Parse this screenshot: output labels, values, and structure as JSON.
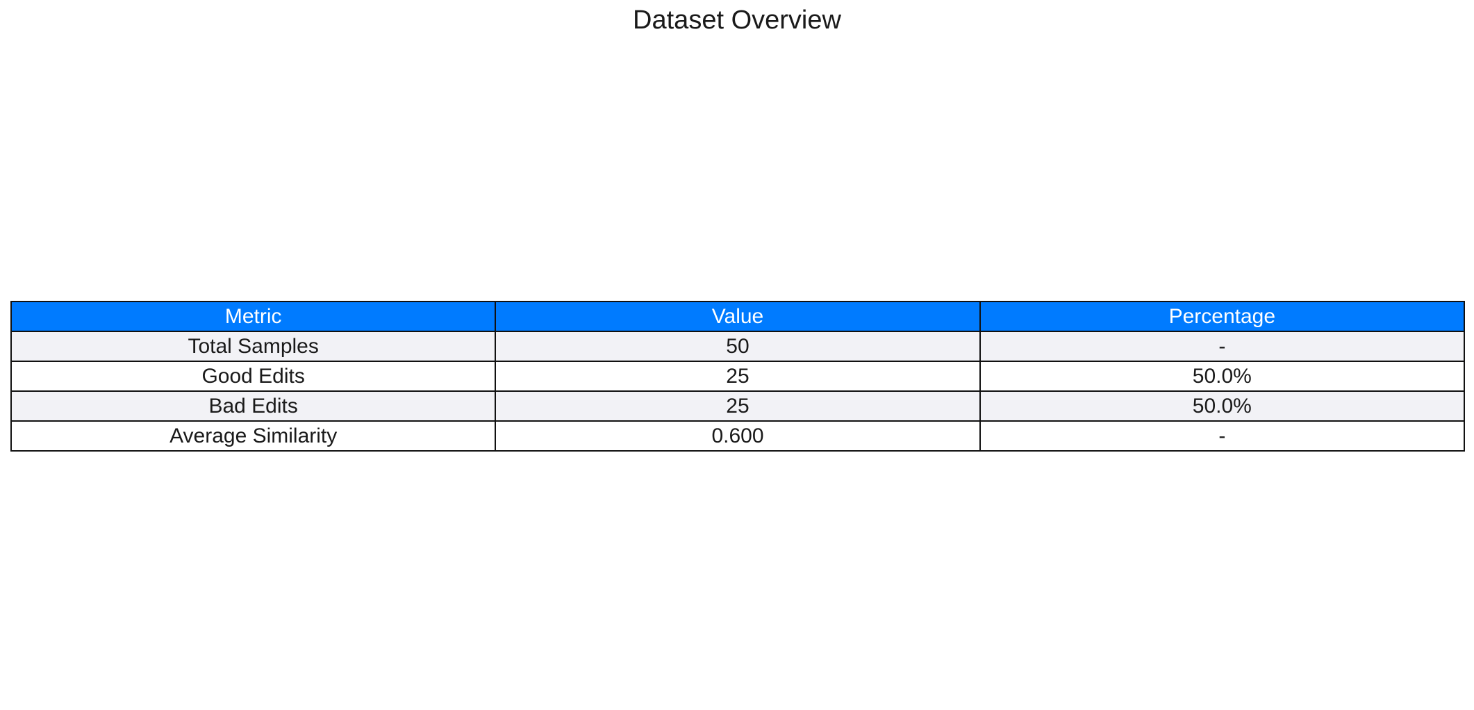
{
  "chart_data": {
    "type": "table",
    "title": "Dataset Overview",
    "columns": [
      "Metric",
      "Value",
      "Percentage"
    ],
    "rows": [
      [
        "Total Samples",
        "50",
        "-"
      ],
      [
        "Good Edits",
        "25",
        "50.0%"
      ],
      [
        "Bad Edits",
        "25",
        "50.0%"
      ],
      [
        "Average Similarity",
        "0.600",
        "-"
      ]
    ]
  },
  "colors": {
    "header_bg": "#007bff",
    "header_text": "#ffffff",
    "row_odd_bg": "#f2f2f6",
    "row_even_bg": "#ffffff",
    "border": "#111111"
  }
}
